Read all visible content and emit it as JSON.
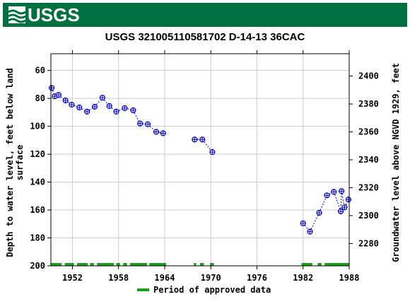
{
  "header": {
    "logo_text": "USGS"
  },
  "chart_data": {
    "type": "scatter",
    "title": "USGS 321005110581702 D-14-13 36CAC",
    "ylabel_left_line1": "Depth to water level, feet below land",
    "ylabel_left_line2": "surface",
    "ylabel_right": "Groundwater level above NGVD 1929, feet",
    "xlim": [
      1949.2,
      1988.0
    ],
    "ylim_left": [
      200,
      48
    ],
    "ylim_right": [
      2264,
      2416
    ],
    "x_ticks": [
      {
        "value": 1952,
        "label": "1952"
      },
      {
        "value": 1958,
        "label": "1958"
      },
      {
        "value": 1964,
        "label": "1964"
      },
      {
        "value": 1970,
        "label": "1970"
      },
      {
        "value": 1976,
        "label": "1976"
      },
      {
        "value": 1982,
        "label": "1982"
      },
      {
        "value": 1988,
        "label": "1988"
      }
    ],
    "y_ticks_left": [
      {
        "value": 60,
        "label": "60"
      },
      {
        "value": 80,
        "label": "80"
      },
      {
        "value": 100,
        "label": "100"
      },
      {
        "value": 120,
        "label": "120"
      },
      {
        "value": 140,
        "label": "140"
      },
      {
        "value": 160,
        "label": "160"
      },
      {
        "value": 180,
        "label": "180"
      },
      {
        "value": 200,
        "label": "200"
      }
    ],
    "y_ticks_right": [
      {
        "value": 2280,
        "label": "2280"
      },
      {
        "value": 2300,
        "label": "2300"
      },
      {
        "value": 2320,
        "label": "2320"
      },
      {
        "value": 2340,
        "label": "2340"
      },
      {
        "value": 2360,
        "label": "2360"
      },
      {
        "value": 2380,
        "label": "2380"
      },
      {
        "value": 2400,
        "label": "2400"
      }
    ],
    "grid": true,
    "series": [
      {
        "marker_color": "#0000cc",
        "points": [
          {
            "x": 1949.3,
            "y": 72.5
          },
          {
            "x": 1949.7,
            "y": 78.5
          },
          {
            "x": 1950.2,
            "y": 77.5
          },
          {
            "x": 1951.1,
            "y": 81.5
          },
          {
            "x": 1951.9,
            "y": 84.5
          },
          {
            "x": 1952.9,
            "y": 86.5
          },
          {
            "x": 1953.9,
            "y": 89.5
          },
          {
            "x": 1954.9,
            "y": 86.0
          },
          {
            "x": 1955.9,
            "y": 79.5
          },
          {
            "x": 1956.8,
            "y": 85.5
          },
          {
            "x": 1957.7,
            "y": 89.5
          },
          {
            "x": 1958.8,
            "y": 87.0
          },
          {
            "x": 1959.9,
            "y": 88.5
          },
          {
            "x": 1960.8,
            "y": 98.0
          },
          {
            "x": 1961.8,
            "y": 98.5
          },
          {
            "x": 1962.9,
            "y": 104.0
          },
          {
            "x": 1963.8,
            "y": 105.0
          },
          {
            "x": 1967.9,
            "y": 109.5
          },
          {
            "x": 1968.9,
            "y": 109.5
          },
          {
            "x": 1970.2,
            "y": 118.5
          },
          {
            "x": 1982.0,
            "y": 169.5
          },
          {
            "x": 1982.9,
            "y": 175.5
          },
          {
            "x": 1984.1,
            "y": 162.0
          },
          {
            "x": 1985.1,
            "y": 149.5
          },
          {
            "x": 1986.0,
            "y": 147.0
          },
          {
            "x": 1986.9,
            "y": 161.0
          },
          {
            "x": 1987.0,
            "y": 146.5
          },
          {
            "x": 1987.4,
            "y": 158.0
          },
          {
            "x": 1987.9,
            "y": 152.5
          }
        ]
      }
    ],
    "approved_periods": [
      [
        1949.2,
        1950.6
      ],
      [
        1951.0,
        1952.2
      ],
      [
        1952.6,
        1954.0
      ],
      [
        1954.3,
        1954.8
      ],
      [
        1955.2,
        1957.4
      ],
      [
        1957.7,
        1958.2
      ],
      [
        1958.6,
        1959.1
      ],
      [
        1959.5,
        1961.7
      ],
      [
        1962.0,
        1964.2
      ],
      [
        1967.8,
        1968.1
      ],
      [
        1968.6,
        1969.1
      ],
      [
        1969.9,
        1970.4
      ],
      [
        1981.8,
        1983.2
      ],
      [
        1983.9,
        1984.4
      ],
      [
        1984.8,
        1988.0
      ]
    ],
    "legend": {
      "label": "Period of approved data",
      "color": "#1c9e1c",
      "position": "bottom"
    }
  }
}
